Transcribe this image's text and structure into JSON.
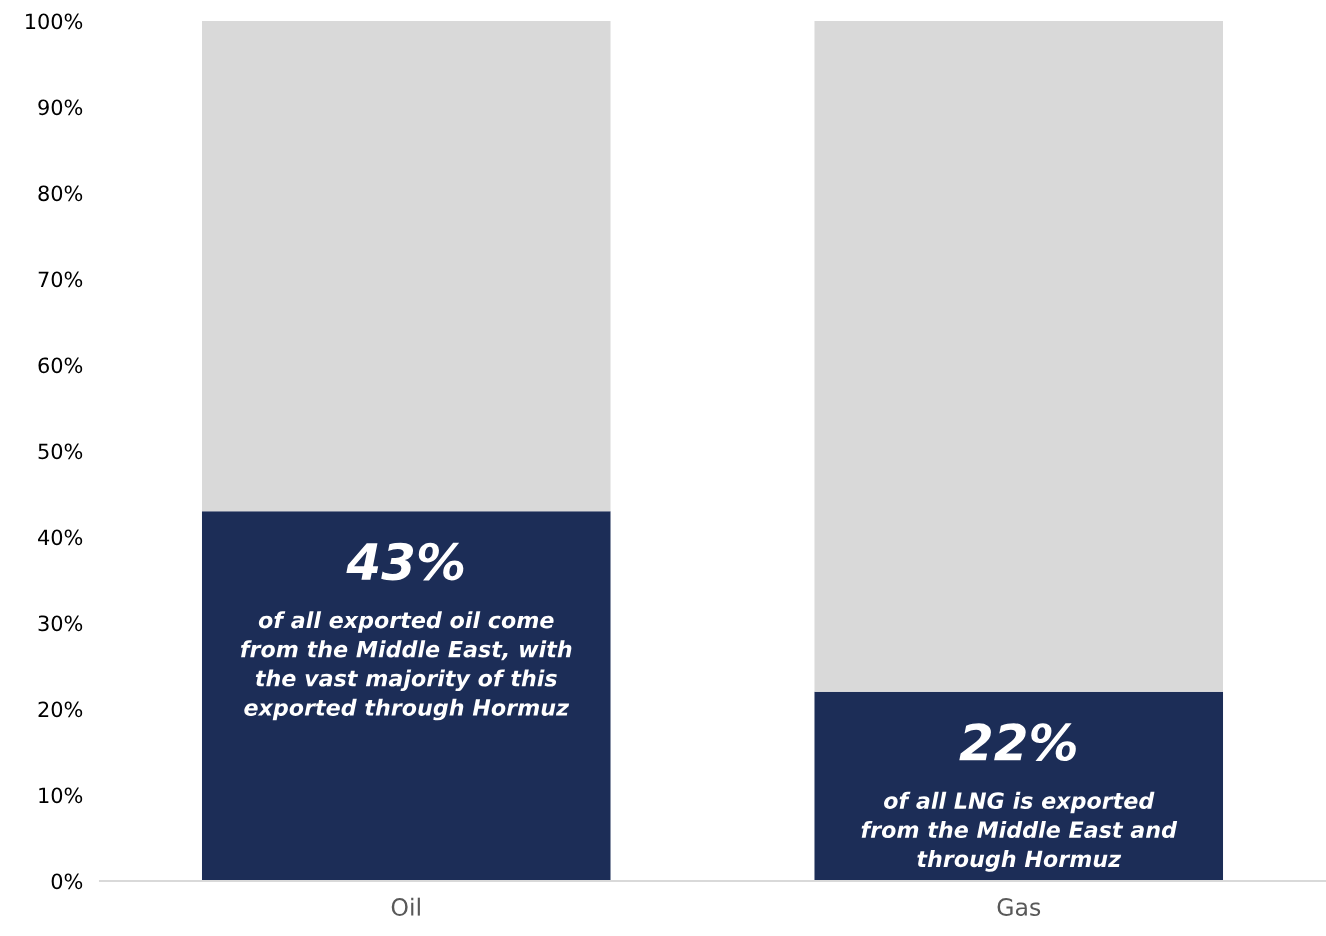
{
  "chart_data": {
    "type": "bar",
    "stacked": true,
    "categories": [
      "Oil",
      "Gas"
    ],
    "series": [
      {
        "color": "#1c2d57",
        "values": [
          43,
          22
        ],
        "value_labels": [
          "43%",
          "22%"
        ]
      },
      {
        "color": "#d9d9d9",
        "values": [
          57,
          78
        ]
      }
    ],
    "ylim": [
      0,
      100
    ],
    "yticks": [
      {
        "value": 0,
        "label": "0%"
      },
      {
        "value": 10,
        "label": "10%"
      },
      {
        "value": 20,
        "label": "20%"
      },
      {
        "value": 30,
        "label": "30%"
      },
      {
        "value": 40,
        "label": "40%"
      },
      {
        "value": 50,
        "label": "50%"
      },
      {
        "value": 60,
        "label": "60%"
      },
      {
        "value": 70,
        "label": "70%"
      },
      {
        "value": 80,
        "label": "80%"
      },
      {
        "value": 90,
        "label": "90%"
      },
      {
        "value": 100,
        "label": "100%"
      }
    ],
    "annotations": [
      "of all exported oil come\nfrom the Middle East, with\nthe vast majority of this\nexported through Hormuz",
      "of all LNG is exported\nfrom the Middle East and\nthrough Hormuz"
    ],
    "grid": false,
    "legend": false
  }
}
